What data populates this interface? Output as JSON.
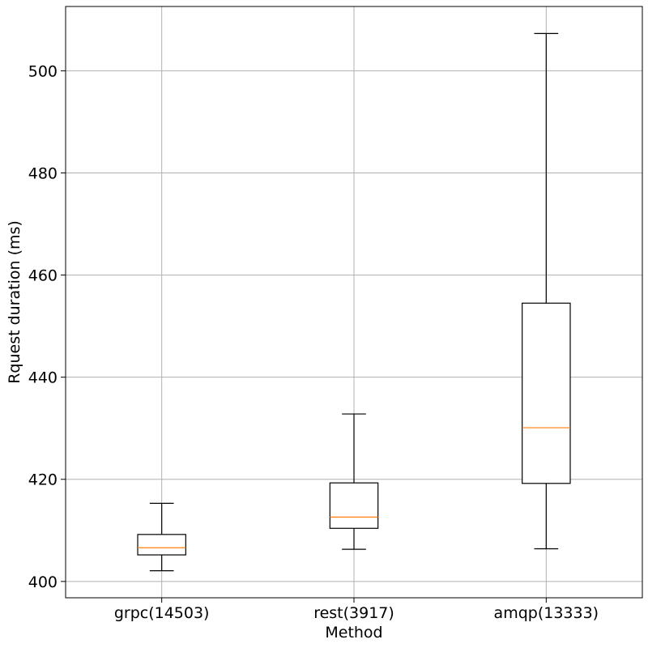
{
  "chart_data": {
    "type": "box",
    "title": "",
    "xlabel": "Method",
    "ylabel": "Rquest duration (ms)",
    "categories": [
      "grpc(14503)",
      "rest(3917)",
      "amqp(13333)"
    ],
    "boxes": [
      {
        "category": "grpc(14503)",
        "whisker_low": 402.1,
        "q1": 405.2,
        "median": 406.6,
        "q3": 409.2,
        "whisker_high": 415.3
      },
      {
        "category": "rest(3917)",
        "whisker_low": 406.3,
        "q1": 410.4,
        "median": 412.6,
        "q3": 419.3,
        "whisker_high": 432.8
      },
      {
        "category": "amqp(13333)",
        "whisker_low": 406.4,
        "q1": 419.2,
        "median": 430.1,
        "q3": 454.5,
        "whisker_high": 507.3
      }
    ],
    "yticks": [
      400,
      420,
      440,
      460,
      480,
      500
    ],
    "ytick_labels": [
      "400",
      "420",
      "440",
      "460",
      "480",
      "500"
    ],
    "ylim": [
      396.8,
      512.6
    ],
    "grid": true,
    "colors": {
      "box": "#000000",
      "median": "#ff7f0e",
      "grid": "#b0b0b0"
    }
  }
}
